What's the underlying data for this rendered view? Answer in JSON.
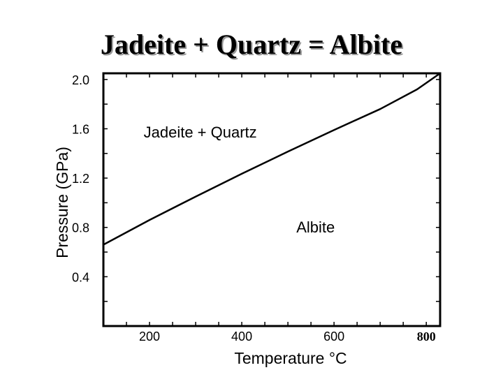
{
  "chart_data": {
    "type": "line",
    "title": "Jadeite + Quartz = Albite",
    "xlabel": "Temperature °C",
    "ylabel": "Pressure (GPa)",
    "xlim": [
      100,
      830
    ],
    "ylim": [
      0.0,
      2.05
    ],
    "x_ticks": [
      {
        "value": 200,
        "label": "200"
      },
      {
        "value": 400,
        "label": "400"
      },
      {
        "value": 600,
        "label": "600"
      },
      {
        "value": 800,
        "label": "800"
      }
    ],
    "y_ticks": [
      {
        "value": 0.4,
        "label": "0.4"
      },
      {
        "value": 0.8,
        "label": "0.8"
      },
      {
        "value": 1.2,
        "label": "1.2"
      },
      {
        "value": 1.6,
        "label": "1.6"
      },
      {
        "value": 2.0,
        "label": "2.0"
      }
    ],
    "x_minor_ticks": [
      100,
      150,
      200,
      250,
      300,
      350,
      400,
      450,
      500,
      550,
      600,
      650,
      700,
      750,
      800
    ],
    "y_minor_ticks": [
      0.2,
      0.4,
      0.6,
      0.8,
      1.0,
      1.2,
      1.4,
      1.6,
      1.8,
      2.0
    ],
    "series": [
      {
        "x": [
          100,
          200,
          300,
          400,
          500,
          600,
          700,
          780,
          830
        ],
        "y": [
          0.66,
          0.86,
          1.05,
          1.235,
          1.415,
          1.59,
          1.76,
          1.92,
          2.06
        ]
      }
    ],
    "annotations": [
      {
        "text": "Jadeite + Quartz",
        "x": 310,
        "y": 1.53
      },
      {
        "text": "Albite",
        "x": 560,
        "y": 0.76
      }
    ],
    "grid": false,
    "legend": "none"
  }
}
